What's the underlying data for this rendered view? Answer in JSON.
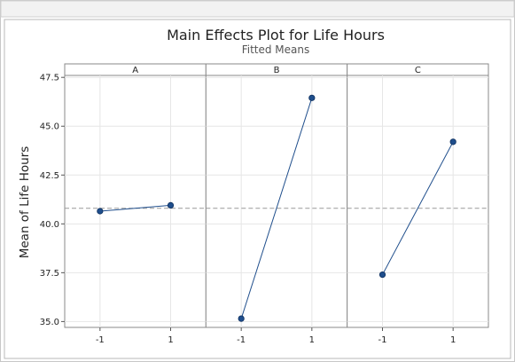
{
  "chart_data": {
    "type": "line",
    "title": "Main Effects Plot for Life Hours",
    "subtitle": "Fitted Means",
    "ylabel": "Mean of Life Hours",
    "ylim": [
      34.7,
      47.6
    ],
    "yticks": [
      "35.0",
      "37.5",
      "40.0",
      "42.5",
      "45.0",
      "47.5"
    ],
    "ytick_values": [
      35.0,
      37.5,
      40.0,
      42.5,
      45.0,
      47.5
    ],
    "reference_mean": 40.8,
    "grid": true,
    "colors": {
      "line": "#1f4e8c",
      "marker": "#1f4e8c",
      "reference": "#999999",
      "strip": "#ffffff"
    },
    "panels": [
      {
        "label": "A",
        "x": [
          "-1",
          "1"
        ],
        "values": [
          40.65,
          40.95
        ]
      },
      {
        "label": "B",
        "x": [
          "-1",
          "1"
        ],
        "values": [
          35.15,
          46.45
        ]
      },
      {
        "label": "C",
        "x": [
          "-1",
          "1"
        ],
        "values": [
          37.4,
          44.2
        ]
      }
    ]
  }
}
